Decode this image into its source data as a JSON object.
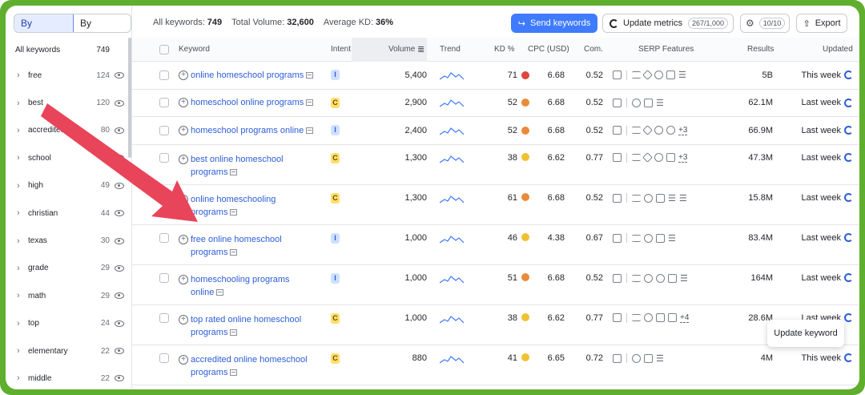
{
  "sidebar": {
    "toggle": [
      "By number",
      "By volume"
    ],
    "header": {
      "label": "All keywords",
      "count": "749"
    },
    "items": [
      {
        "label": "free",
        "count": "124"
      },
      {
        "label": "best",
        "count": "120"
      },
      {
        "label": "accredited",
        "count": "80"
      },
      {
        "label": "school",
        "count": ""
      },
      {
        "label": "high",
        "count": "49"
      },
      {
        "label": "christian",
        "count": "44"
      },
      {
        "label": "texas",
        "count": "30"
      },
      {
        "label": "grade",
        "count": "29"
      },
      {
        "label": "math",
        "count": "29"
      },
      {
        "label": "top",
        "count": "24"
      },
      {
        "label": "elementary",
        "count": "22"
      },
      {
        "label": "middle",
        "count": "22"
      }
    ]
  },
  "topbar": {
    "all_keywords_label": "All keywords:",
    "all_keywords_value": "749",
    "total_volume_label": "Total Volume:",
    "total_volume_value": "32,600",
    "avg_kd_label": "Average KD:",
    "avg_kd_value": "36%",
    "send_button": "Send keywords",
    "update_button": "Update metrics",
    "update_quota": "267/1,000",
    "settings_quota": "10/10",
    "export_button": "Export"
  },
  "columns": [
    "Keyword",
    "Intent",
    "Volume",
    "Trend",
    "KD %",
    "CPC (USD)",
    "Com.",
    "SERP Features",
    "Results",
    "Updated"
  ],
  "rows": [
    {
      "keyword": [
        "online homeschool programs"
      ],
      "intent": "I",
      "volume": "5,400",
      "kd": "71",
      "kd_color": "#e0463a",
      "cpc": "6.68",
      "com": "0.52",
      "features": [
        "sq",
        "sep",
        "l",
        "d",
        "c",
        "m",
        "list"
      ],
      "more": "",
      "results": "5B",
      "updated": "This week"
    },
    {
      "keyword": [
        "homeschool online programs"
      ],
      "intent": "C",
      "volume": "2,900",
      "kd": "52",
      "kd_color": "#e98b3a",
      "cpc": "6.68",
      "com": "0.52",
      "features": [
        "sq",
        "sep",
        "c",
        "m",
        "list"
      ],
      "more": "",
      "results": "62.1M",
      "updated": "Last week"
    },
    {
      "keyword": [
        "homeschool programs online"
      ],
      "intent": "I",
      "volume": "2,400",
      "kd": "52",
      "kd_color": "#e98b3a",
      "cpc": "6.68",
      "com": "0.52",
      "features": [
        "sq",
        "sep",
        "l",
        "d",
        "c",
        "c"
      ],
      "more": "+3",
      "results": "66.9M",
      "updated": "Last week"
    },
    {
      "keyword": [
        "best online homeschool",
        "programs"
      ],
      "intent": "C",
      "volume": "1,300",
      "kd": "38",
      "kd_color": "#f2c033",
      "cpc": "6.62",
      "com": "0.77",
      "features": [
        "sq",
        "sep",
        "l",
        "d",
        "c",
        "m"
      ],
      "more": "+3",
      "results": "47.3M",
      "updated": "Last week"
    },
    {
      "keyword": [
        "online homeschooling",
        "programs"
      ],
      "intent": "C",
      "volume": "1,300",
      "kd": "61",
      "kd_color": "#e98b3a",
      "cpc": "6.68",
      "com": "0.52",
      "features": [
        "sq",
        "sep",
        "l",
        "c",
        "m",
        "list",
        "list"
      ],
      "more": "",
      "results": "15.8M",
      "updated": "Last week"
    },
    {
      "keyword": [
        "free online homeschool",
        "programs"
      ],
      "intent": "I",
      "volume": "1,000",
      "kd": "46",
      "kd_color": "#f2c033",
      "cpc": "4.38",
      "com": "0.67",
      "features": [
        "sq",
        "sep",
        "l",
        "c",
        "m",
        "list"
      ],
      "more": "",
      "results": "83.4M",
      "updated": "Last week"
    },
    {
      "keyword": [
        "homeschooling programs",
        "online"
      ],
      "intent": "I",
      "volume": "1,000",
      "kd": "51",
      "kd_color": "#e98b3a",
      "cpc": "6.68",
      "com": "0.52",
      "features": [
        "sq",
        "sep",
        "l",
        "c",
        "c",
        "m",
        "list"
      ],
      "more": "",
      "results": "164M",
      "updated": "Last week"
    },
    {
      "keyword": [
        "top rated online homeschool",
        "programs"
      ],
      "intent": "C",
      "volume": "1,000",
      "kd": "38",
      "kd_color": "#f2c033",
      "cpc": "6.62",
      "com": "0.77",
      "features": [
        "sq",
        "sep",
        "l",
        "c",
        "m",
        "m"
      ],
      "more": "+4",
      "results": "28.6M",
      "updated": "Last week"
    },
    {
      "keyword": [
        "accredited online homeschool",
        "programs"
      ],
      "intent": "C",
      "volume": "880",
      "kd": "41",
      "kd_color": "#f2c033",
      "cpc": "6.65",
      "com": "0.72",
      "features": [
        "sq",
        "sep",
        "c",
        "m",
        "list"
      ],
      "more": "",
      "results": "4M",
      "updated": "This week"
    }
  ],
  "tooltip": "Update keyword",
  "colors": {
    "accent": "#3f7bff",
    "frame": "#5fae2e",
    "arrow": "#e8445a"
  }
}
